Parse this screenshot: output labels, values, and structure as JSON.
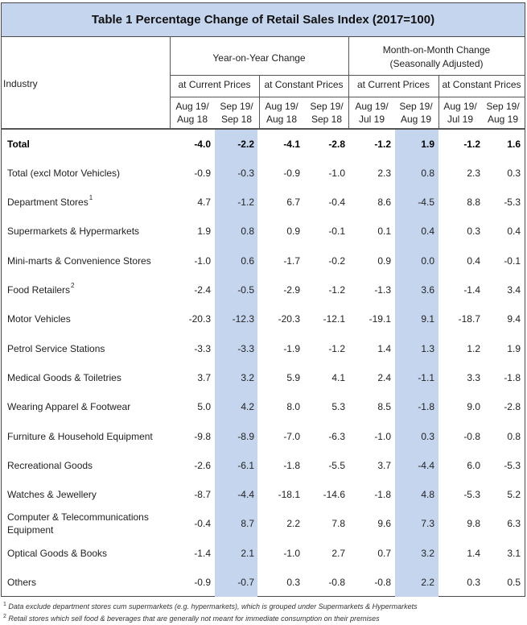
{
  "title": "Table 1   Percentage Change of Retail Sales Index (2017=100)",
  "headers": {
    "industry": "Industry",
    "yoy": "Year-on-Year Change",
    "mom_line1": "Month-on-Month Change",
    "mom_line2": "(Seasonally Adjusted)",
    "current_prices": "at Current Prices",
    "constant_prices": "at Constant Prices",
    "periods": [
      [
        "Aug 19/",
        "Aug 18"
      ],
      [
        "Sep 19/",
        "Sep 18"
      ],
      [
        "Aug 19/",
        "Aug 18"
      ],
      [
        "Sep 19/",
        "Sep 18"
      ],
      [
        "Aug 19/",
        "Jul 19"
      ],
      [
        "Sep 19/",
        "Aug 19"
      ],
      [
        "Aug 19/",
        "Jul 19"
      ],
      [
        "Sep 19/",
        "Aug 19"
      ]
    ]
  },
  "highlight_color": "#c5d5ee",
  "rows": [
    {
      "label": "Total",
      "sup": "",
      "bold": true,
      "values": [
        "-4.0",
        "-2.2",
        "-4.1",
        "-2.8",
        "-1.2",
        "1.9",
        "-1.2",
        "1.6"
      ]
    },
    {
      "label": "Total (excl Motor Vehicles)",
      "sup": "",
      "values": [
        "-0.9",
        "-0.3",
        "-0.9",
        "-1.0",
        "2.3",
        "0.8",
        "2.3",
        "0.3"
      ]
    },
    {
      "label": "Department Stores",
      "sup": "1",
      "values": [
        "4.7",
        "-1.2",
        "6.7",
        "-0.4",
        "8.6",
        "-4.5",
        "8.8",
        "-5.3"
      ]
    },
    {
      "label": "Supermarkets & Hypermarkets",
      "sup": "",
      "values": [
        "1.9",
        "0.8",
        "0.9",
        "-0.1",
        "0.1",
        "0.4",
        "0.3",
        "0.4"
      ]
    },
    {
      "label": "Mini-marts & Convenience Stores",
      "sup": "",
      "values": [
        "-1.0",
        "0.6",
        "-1.7",
        "-0.2",
        "0.9",
        "0.0",
        "0.4",
        "-0.1"
      ]
    },
    {
      "label": "Food Retailers",
      "sup": "2",
      "values": [
        "-2.4",
        "-0.5",
        "-2.9",
        "-1.2",
        "-1.3",
        "3.6",
        "-1.4",
        "3.4"
      ]
    },
    {
      "label": "Motor Vehicles",
      "sup": "",
      "values": [
        "-20.3",
        "-12.3",
        "-20.3",
        "-12.1",
        "-19.1",
        "9.1",
        "-18.7",
        "9.4"
      ]
    },
    {
      "label": "Petrol Service Stations",
      "sup": "",
      "values": [
        "-3.3",
        "-3.3",
        "-1.9",
        "-1.2",
        "1.4",
        "1.3",
        "1.2",
        "1.9"
      ]
    },
    {
      "label": "Medical Goods & Toiletries",
      "sup": "",
      "values": [
        "3.7",
        "3.2",
        "5.9",
        "4.1",
        "2.4",
        "-1.1",
        "3.3",
        "-1.8"
      ]
    },
    {
      "label": "Wearing Apparel & Footwear",
      "sup": "",
      "values": [
        "5.0",
        "4.2",
        "8.0",
        "5.3",
        "8.5",
        "-1.8",
        "9.0",
        "-2.8"
      ]
    },
    {
      "label": "Furniture & Household Equipment",
      "sup": "",
      "values": [
        "-9.8",
        "-8.9",
        "-7.0",
        "-6.3",
        "-1.0",
        "0.3",
        "-0.8",
        "0.8"
      ]
    },
    {
      "label": "Recreational Goods",
      "sup": "",
      "values": [
        "-2.6",
        "-6.1",
        "-1.8",
        "-5.5",
        "3.7",
        "-4.4",
        "6.0",
        "-5.3"
      ]
    },
    {
      "label": "Watches & Jewellery",
      "sup": "",
      "values": [
        "-8.7",
        "-4.4",
        "-18.1",
        "-14.6",
        "-1.8",
        "4.8",
        "-5.3",
        "5.2"
      ]
    },
    {
      "label": "Computer & Telecommunications Equipment",
      "sup": "",
      "values": [
        "-0.4",
        "8.7",
        "2.2",
        "7.8",
        "9.6",
        "7.3",
        "9.8",
        "6.3"
      ]
    },
    {
      "label": "Optical Goods & Books",
      "sup": "",
      "values": [
        "-1.4",
        "2.1",
        "-1.0",
        "2.7",
        "0.7",
        "3.2",
        "1.4",
        "3.1"
      ]
    },
    {
      "label": "Others",
      "sup": "",
      "values": [
        "-0.9",
        "-0.7",
        "0.3",
        "-0.8",
        "-0.8",
        "2.2",
        "0.3",
        "0.5"
      ]
    }
  ],
  "footnotes": [
    {
      "sup": "1",
      "text": "Data exclude department stores cum supermarkets (e.g. hypermarkets), which is  grouped under Supermarkets & Hypermarkets"
    },
    {
      "sup": "2",
      "text": "Retail stores which sell food & beverages that are generally not meant for immediate consumption on their premises"
    }
  ]
}
